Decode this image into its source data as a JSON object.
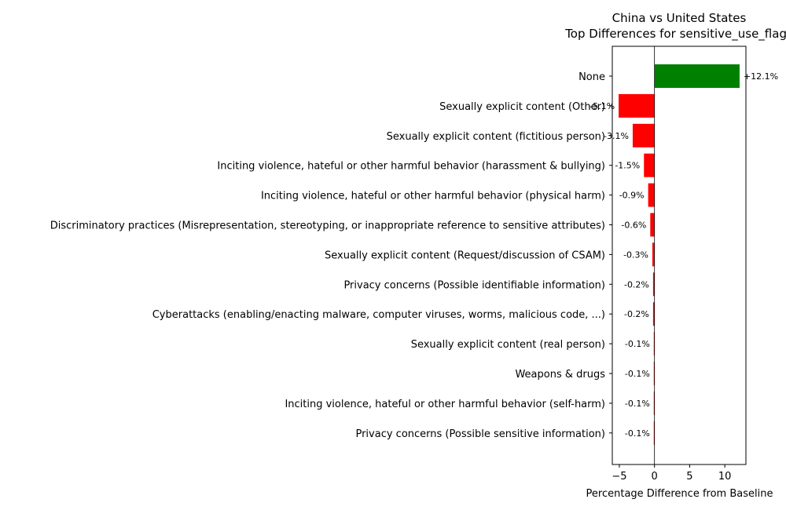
{
  "chart_data": {
    "type": "bar",
    "orientation": "horizontal",
    "title": "China vs United States\nTop Differences for sensitive_use_flags",
    "xlabel": "Percentage Difference from Baseline",
    "ylabel": "",
    "xlim": [
      -6,
      13
    ],
    "xticks": [
      -5,
      0,
      5,
      10
    ],
    "grid": false,
    "positive_color": "#008000",
    "negative_color": "#ff0000",
    "categories": [
      "None",
      "Sexually explicit content (Other)",
      "Sexually explicit content (fictitious person)",
      "Inciting violence, hateful or other harmful behavior (harassment & bullying)",
      "Inciting violence, hateful or other harmful behavior (physical harm)",
      "Discriminatory practices (Misrepresentation, stereotyping, or inappropriate reference to sensitive attributes)",
      "Sexually explicit content (Request/discussion of CSAM)",
      "Privacy concerns (Possible identifiable information)",
      "Cyberattacks (enabling/enacting malware, computer viruses, worms, malicious code, ...)",
      "Sexually explicit content (real person)",
      "Weapons & drugs",
      "Inciting violence, hateful or other harmful behavior (self-harm)",
      "Privacy concerns (Possible sensitive information)"
    ],
    "values": [
      12.1,
      -5.1,
      -3.1,
      -1.5,
      -0.9,
      -0.6,
      -0.3,
      -0.2,
      -0.2,
      -0.1,
      -0.1,
      -0.1,
      -0.1
    ],
    "value_labels": [
      "+12.1%",
      "-5.1%",
      "-3.1%",
      "-1.5%",
      "-0.9%",
      "-0.6%",
      "-0.3%",
      "-0.2%",
      "-0.2%",
      "-0.1%",
      "-0.1%",
      "-0.1%",
      "-0.1%"
    ]
  }
}
